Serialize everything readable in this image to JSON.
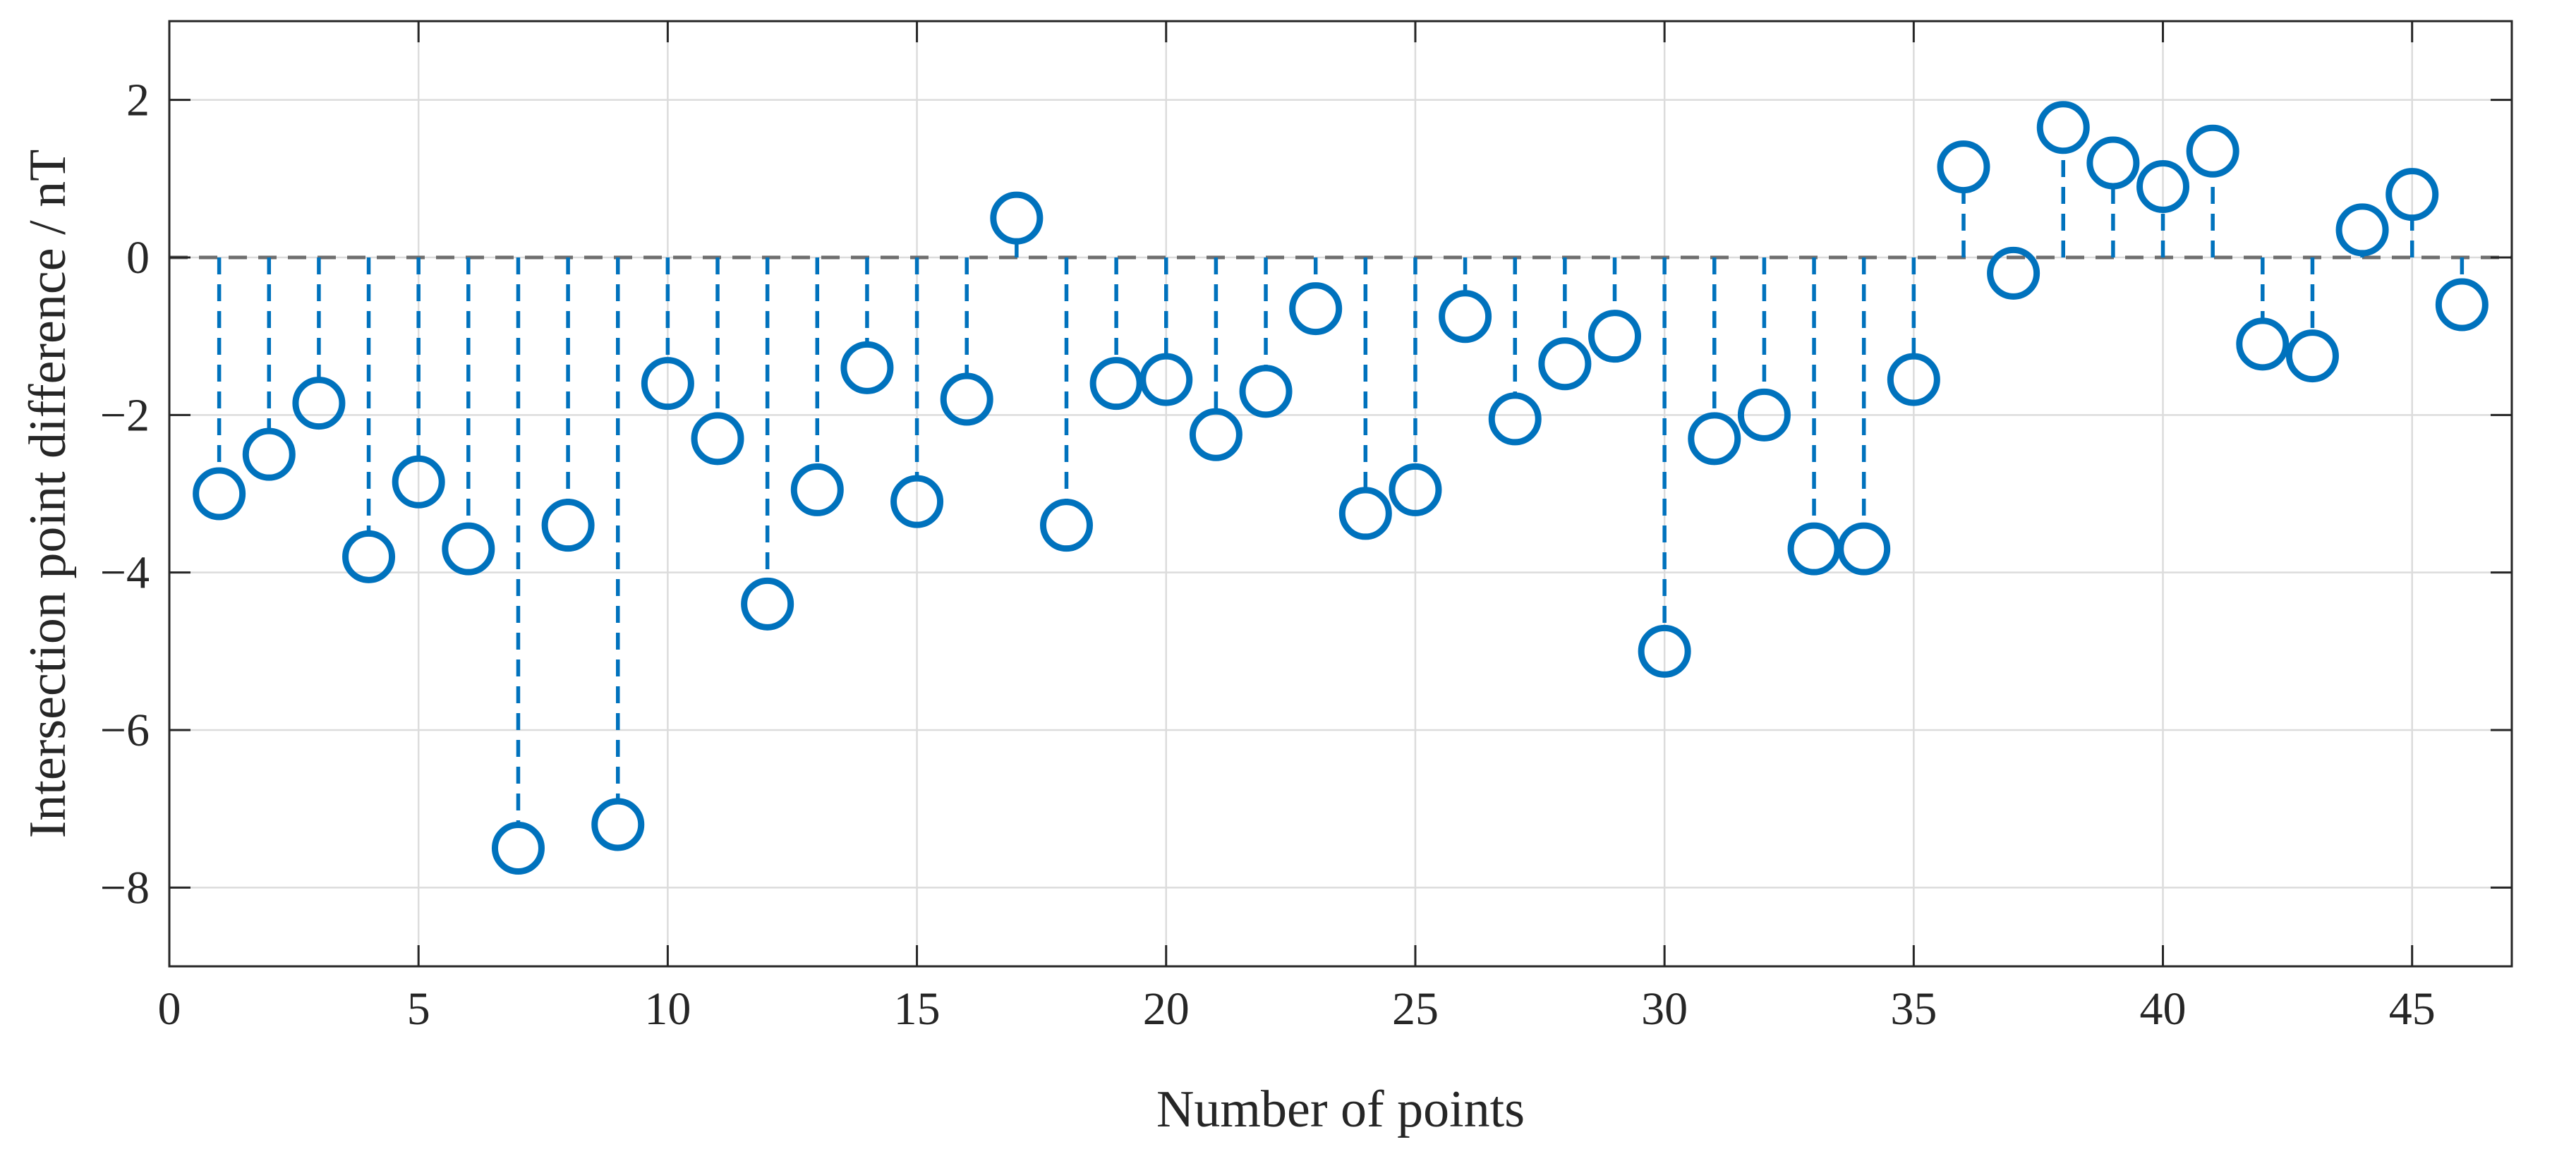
{
  "chart_data": {
    "type": "stem",
    "title": "",
    "xlabel": "Number of points",
    "ylabel": "Intersection point difference / nT",
    "xlim": [
      0,
      47
    ],
    "ylim": [
      -9,
      3
    ],
    "xticks": [
      0,
      5,
      10,
      15,
      20,
      25,
      30,
      35,
      40,
      45
    ],
    "yticks": [
      2,
      0,
      -2,
      -4,
      -6,
      -8
    ],
    "ytick_labels": [
      "2",
      "0",
      "−2",
      "−4",
      "−6",
      "−8"
    ],
    "grid": true,
    "baseline": 0,
    "series": [
      {
        "color": "#0072BD",
        "marker": "circle",
        "x": [
          1,
          2,
          3,
          4,
          5,
          6,
          7,
          8,
          9,
          10,
          11,
          12,
          13,
          14,
          15,
          16,
          17,
          18,
          19,
          20,
          21,
          22,
          23,
          24,
          25,
          26,
          27,
          28,
          29,
          30,
          31,
          32,
          33,
          34,
          35,
          36,
          37,
          38,
          39,
          40,
          41,
          42,
          43,
          44,
          45,
          46
        ],
        "y": [
          -3.0,
          -2.5,
          -1.85,
          -3.8,
          -2.85,
          -3.7,
          -7.5,
          -3.4,
          -7.2,
          -1.6,
          -2.3,
          -4.4,
          -2.95,
          -1.4,
          -3.1,
          -1.8,
          0.5,
          -3.4,
          -1.6,
          -1.55,
          -2.25,
          -1.7,
          -0.65,
          -3.25,
          -2.95,
          -0.75,
          -2.05,
          -1.35,
          -1.0,
          -5.0,
          -2.3,
          -2.0,
          -3.7,
          -3.7,
          -1.55,
          1.15,
          -0.2,
          1.65,
          1.2,
          0.9,
          1.35,
          -1.1,
          -1.25,
          0.35,
          0.8,
          -0.6
        ]
      }
    ]
  }
}
